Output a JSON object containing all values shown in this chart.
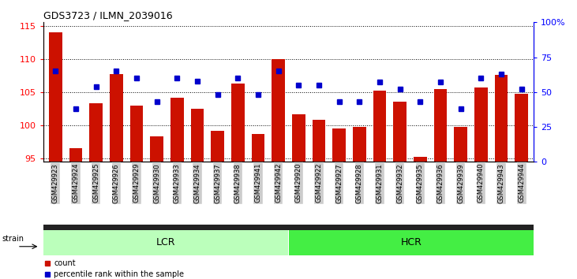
{
  "title": "GDS3723 / ILMN_2039016",
  "samples": [
    "GSM429923",
    "GSM429924",
    "GSM429925",
    "GSM429926",
    "GSM429929",
    "GSM429930",
    "GSM429933",
    "GSM429934",
    "GSM429937",
    "GSM429938",
    "GSM429941",
    "GSM429942",
    "GSM429920",
    "GSM429922",
    "GSM429927",
    "GSM429928",
    "GSM429931",
    "GSM429932",
    "GSM429935",
    "GSM429936",
    "GSM429939",
    "GSM429940",
    "GSM429943",
    "GSM429944"
  ],
  "counts": [
    114.0,
    96.5,
    103.3,
    107.7,
    103.0,
    98.3,
    104.2,
    102.5,
    99.2,
    106.3,
    98.7,
    110.0,
    101.6,
    100.8,
    99.5,
    99.7,
    105.2,
    103.5,
    95.3,
    105.4,
    99.7,
    105.7,
    107.6,
    104.8
  ],
  "percentile_ranks": [
    65,
    38,
    54,
    65,
    60,
    43,
    60,
    58,
    48,
    60,
    48,
    65,
    55,
    55,
    43,
    43,
    57,
    52,
    43,
    57,
    38,
    60,
    63,
    52
  ],
  "lcr_count": 12,
  "hcr_count": 12,
  "ylim_left": [
    94.5,
    115.5
  ],
  "ylim_right": [
    0,
    100
  ],
  "yticks_left": [
    95,
    100,
    105,
    110,
    115
  ],
  "yticks_right": [
    0,
    25,
    50,
    75,
    100
  ],
  "bar_color": "#cc1100",
  "dot_color": "#0000cc",
  "lcr_color": "#bbffbb",
  "hcr_color": "#44ee44",
  "bg_color": "#ffffff",
  "label_bg_color": "#cccccc",
  "sep_color": "#333333"
}
